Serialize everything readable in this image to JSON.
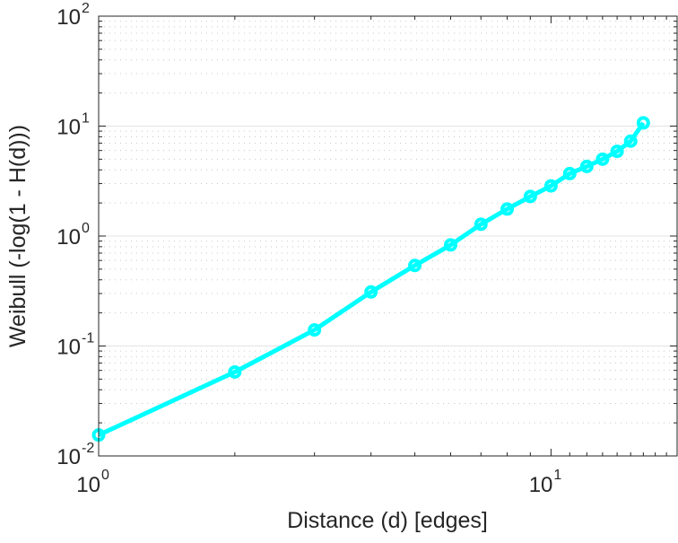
{
  "chart_data": {
    "type": "line",
    "title": "",
    "xlabel": "Distance (d) [edges]",
    "ylabel": "Weibull (-log(1 - H(d)))",
    "xscale": "log",
    "yscale": "log",
    "xlim": [
      1,
      19
    ],
    "ylim": [
      0.01,
      100
    ],
    "grid": "y-major-and-minor",
    "x_ticks": [
      {
        "base": "10",
        "exp": "0",
        "value": 1
      },
      {
        "base": "10",
        "exp": "1",
        "value": 10
      }
    ],
    "y_ticks": [
      {
        "base": "10",
        "exp": "-2",
        "value": 0.01
      },
      {
        "base": "10",
        "exp": "-1",
        "value": 0.1
      },
      {
        "base": "10",
        "exp": "0",
        "value": 1
      },
      {
        "base": "10",
        "exp": "1",
        "value": 10
      },
      {
        "base": "10",
        "exp": "2",
        "value": 100
      }
    ],
    "series": [
      {
        "name": "Weibull",
        "color": "#00FFFF",
        "marker": "circle",
        "x": [
          1,
          2,
          3,
          4,
          5,
          6,
          7,
          8,
          9,
          10,
          11,
          12,
          13,
          14,
          15,
          16
        ],
        "y": [
          0.0155,
          0.058,
          0.14,
          0.31,
          0.54,
          0.83,
          1.28,
          1.76,
          2.29,
          2.86,
          3.7,
          4.3,
          5.0,
          5.9,
          7.3,
          10.7
        ]
      }
    ]
  }
}
